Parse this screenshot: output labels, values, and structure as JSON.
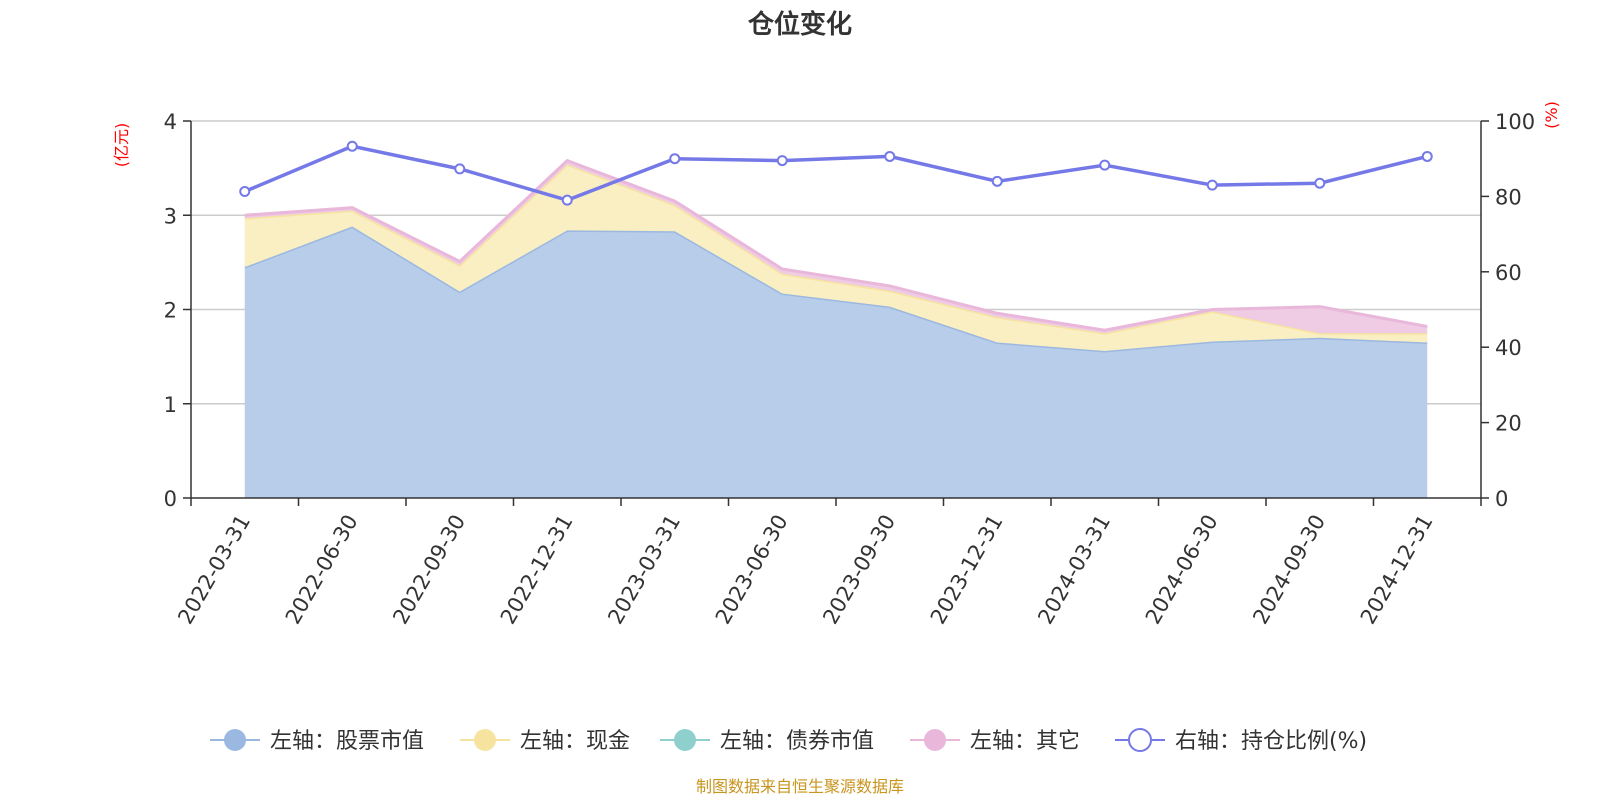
{
  "chart_data": {
    "type": "area",
    "title": "仓位变化",
    "left_axis_unit": "(亿元)",
    "right_axis_unit": "(%)",
    "left_ylim": [
      0,
      4
    ],
    "right_ylim": [
      0,
      100
    ],
    "left_ticks": [
      "0",
      "1",
      "2",
      "3",
      "4"
    ],
    "right_ticks": [
      "0",
      "20",
      "40",
      "60",
      "80",
      "100"
    ],
    "categories": [
      "2022-03-31",
      "2022-06-30",
      "2022-09-30",
      "2022-12-31",
      "2023-03-31",
      "2023-06-30",
      "2023-09-30",
      "2023-12-31",
      "2024-03-31",
      "2024-06-30",
      "2024-09-30",
      "2024-12-31"
    ],
    "series": [
      {
        "name": "左轴：股票市值",
        "axis": "left",
        "stack": true,
        "color": "#9bb8e0",
        "fill": "#b8cdea",
        "values": [
          2.45,
          2.88,
          2.19,
          2.84,
          2.83,
          2.17,
          2.03,
          1.65,
          1.56,
          1.66,
          1.7,
          1.65
        ]
      },
      {
        "name": "左轴：现金",
        "axis": "left",
        "stack": true,
        "color": "#f6e3a0",
        "fill": "#faeec3",
        "values": [
          0.52,
          0.17,
          0.28,
          0.7,
          0.28,
          0.21,
          0.17,
          0.27,
          0.19,
          0.32,
          0.05,
          0.1
        ]
      },
      {
        "name": "左轴：债券市值",
        "axis": "left",
        "stack": true,
        "color": "#8fd0cf",
        "fill": "#bfe5e4",
        "values": [
          0,
          0,
          0,
          0,
          0,
          0,
          0,
          0,
          0,
          0,
          0,
          0
        ]
      },
      {
        "name": "左轴：其它",
        "axis": "left",
        "stack": true,
        "color": "#e8b7da",
        "fill": "#efcbe4",
        "values": [
          0.03,
          0.03,
          0.04,
          0.04,
          0.04,
          0.05,
          0.05,
          0.04,
          0.03,
          0.02,
          0.28,
          0.07
        ]
      },
      {
        "name": "右轴：持仓比例(%)",
        "axis": "right",
        "stack": false,
        "color": "#7579e7",
        "values": [
          81.3,
          93.3,
          87.3,
          79.0,
          90.0,
          89.5,
          90.6,
          84.0,
          88.3,
          83.0,
          83.5,
          90.6
        ]
      }
    ],
    "source": "制图数据来自恒生聚源数据库"
  }
}
